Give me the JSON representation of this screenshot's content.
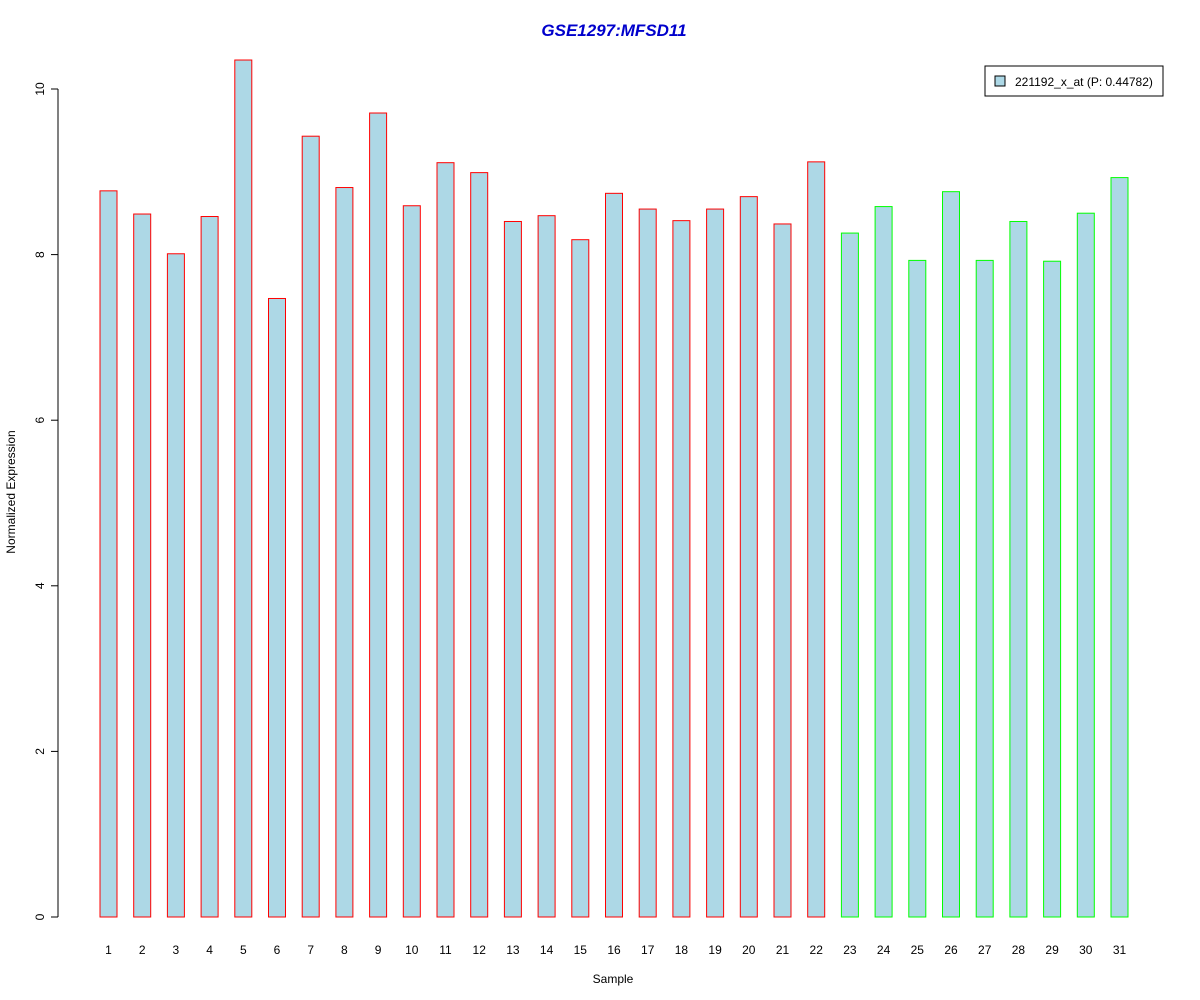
{
  "chart_data": {
    "type": "bar",
    "title": "GSE1297:MFSD11",
    "xlabel": "Sample",
    "ylabel": "Normalized Expression",
    "categories": [
      "1",
      "2",
      "3",
      "4",
      "5",
      "6",
      "7",
      "8",
      "9",
      "10",
      "11",
      "12",
      "13",
      "14",
      "15",
      "16",
      "17",
      "18",
      "19",
      "20",
      "21",
      "22",
      "23",
      "24",
      "25",
      "26",
      "27",
      "28",
      "29",
      "30",
      "31"
    ],
    "series": [
      {
        "name": "221192_x_at (P: 0.44782)",
        "values": [
          8.77,
          8.49,
          8.01,
          8.46,
          10.35,
          7.47,
          9.43,
          8.81,
          9.71,
          8.59,
          9.11,
          8.99,
          8.4,
          8.47,
          8.18,
          8.74,
          8.55,
          8.41,
          8.55,
          8.7,
          8.37,
          9.12,
          8.26,
          8.58,
          7.93,
          8.76,
          7.93,
          8.4,
          7.92,
          8.5,
          8.93
        ]
      }
    ],
    "groups": [
      1,
      1,
      1,
      1,
      1,
      1,
      1,
      1,
      1,
      1,
      1,
      1,
      1,
      1,
      1,
      1,
      1,
      1,
      1,
      1,
      1,
      1,
      2,
      2,
      2,
      2,
      2,
      2,
      2,
      2,
      2
    ],
    "ylim": [
      0,
      10.4
    ],
    "yticks": [
      0,
      2,
      4,
      6,
      8,
      10
    ],
    "legend_position": "top-right",
    "grid": false,
    "colors": {
      "title": "#0000cc",
      "bar_fill": "#add8e6",
      "group1_border": "#ff0000",
      "group2_border": "#00ff00",
      "axis": "#000000"
    }
  }
}
